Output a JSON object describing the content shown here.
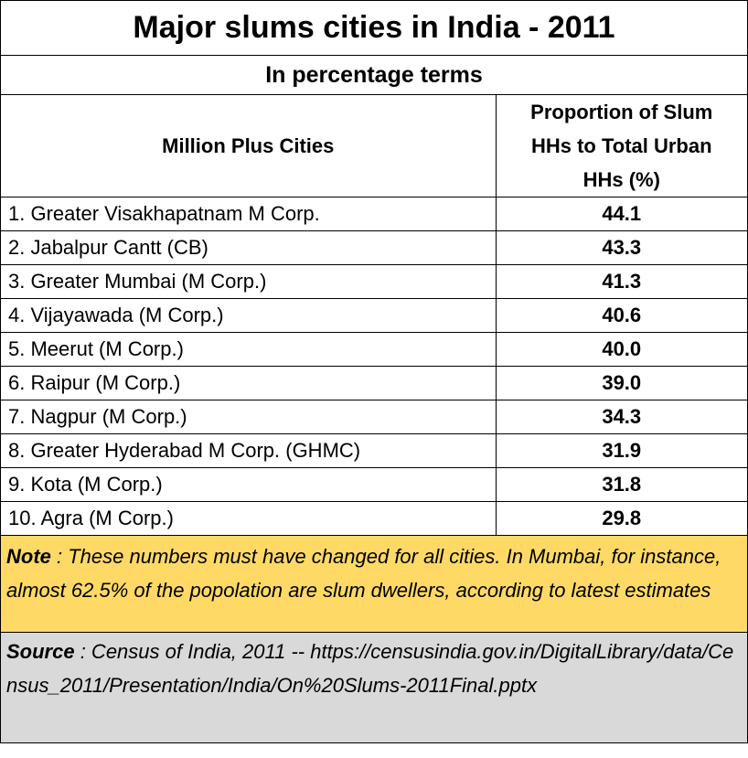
{
  "title": "Major slums cities in India - 2011",
  "subtitle": "In percentage terms",
  "columns": {
    "city": "Million Plus Cities",
    "value_lines": [
      "Proportion of Slum",
      "HHs to Total Urban",
      "HHs  (%)"
    ]
  },
  "rows": [
    {
      "city": "1. Greater Visakhapatnam M Corp.",
      "value": "44.1"
    },
    {
      "city": "2. Jabalpur Cantt (CB)",
      "value": "43.3"
    },
    {
      "city": "3. Greater Mumbai (M Corp.)",
      "value": "41.3"
    },
    {
      "city": "4. Vijayawada (M Corp.)",
      "value": "40.6"
    },
    {
      "city": "5. Meerut (M Corp.)",
      "value": "40.0"
    },
    {
      "city": "6. Raipur (M Corp.)",
      "value": "39.0"
    },
    {
      "city": "7. Nagpur (M Corp.)",
      "value": "34.3"
    },
    {
      "city": "8. Greater Hyderabad M Corp. (GHMC)",
      "value": "31.9"
    },
    {
      "city": "9. Kota (M Corp.)",
      "value": "31.8"
    },
    {
      "city": "10. Agra (M Corp.)",
      "value": "29.8"
    }
  ],
  "note": {
    "label": "Note",
    "text": " : These numbers must have changed for all cities.  In Mumbai, for instance, almost 62.5% of the popolation are slum dwellers, according to latest estimates"
  },
  "source": {
    "label": "Source",
    "text": " : Census of India, 2011 -- https://censusindia.gov.in/DigitalLibrary/data/Census_2011/Presentation/India/On%20Slums-2011Final.pptx"
  },
  "colors": {
    "note_bg": "#ffd966",
    "source_bg": "#d9d9d9",
    "border": "#000000"
  },
  "chart_data": {
    "type": "table",
    "title": "Major slums cities in India - 2011",
    "subtitle": "In percentage terms",
    "columns": [
      "Million Plus Cities",
      "Proportion of Slum HHs to Total Urban HHs  (%)"
    ],
    "categories": [
      "1. Greater Visakhapatnam M Corp.",
      "2. Jabalpur Cantt (CB)",
      "3. Greater Mumbai (M Corp.)",
      "4. Vijayawada (M Corp.)",
      "5. Meerut (M Corp.)",
      "6. Raipur (M Corp.)",
      "7. Nagpur (M Corp.)",
      "8. Greater Hyderabad M Corp. (GHMC)",
      "9. Kota (M Corp.)",
      "10. Agra (M Corp.)"
    ],
    "values": [
      44.1,
      43.3,
      41.3,
      40.6,
      40.0,
      39.0,
      34.3,
      31.9,
      31.8,
      29.8
    ]
  }
}
